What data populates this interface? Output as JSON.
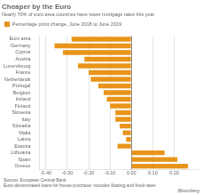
{
  "chart_data": {
    "type": "bar",
    "orientation": "horizontal",
    "title": "Cheaper by the Euro",
    "subtitle": "Nearly 70% of euro area countries have lower mortgage rates this year",
    "categories": [
      "Euro area",
      "Germany",
      "Cyprus",
      "Austria",
      "Luxembourg",
      "France",
      "Netherlands",
      "Portugal",
      "Belgium",
      "Ireland",
      "Finland",
      "Slovenia",
      "Italy",
      "Slovakia",
      "Malta",
      "Latvia",
      "Estonia",
      "Lithuania",
      "Spain",
      "Greece"
    ],
    "series": [
      {
        "name": "Percentage point change, June 2018 to June 2019",
        "color": "#E8941A",
        "values": [
          -0.28,
          -0.36,
          -0.32,
          -0.22,
          -0.25,
          -0.2,
          -0.19,
          -0.155,
          -0.13,
          -0.115,
          -0.1,
          -0.075,
          -0.075,
          -0.055,
          -0.04,
          -0.025,
          -0.065,
          0.155,
          0.215,
          0.265
        ]
      }
    ],
    "xlim": [
      -0.43,
      0.31
    ],
    "xticks": [
      {
        "value": -0.4,
        "label": "-0.40"
      },
      {
        "value": -0.3,
        "label": "-0.30"
      },
      {
        "value": -0.2,
        "label": "-0.20"
      },
      {
        "value": -0.1,
        "label": "-0.10"
      },
      {
        "value": 0.0,
        "label": "0.00"
      },
      {
        "value": 0.1,
        "label": "0.10"
      },
      {
        "value": 0.2,
        "label": "0.20"
      }
    ],
    "grid": true,
    "legend": "top",
    "annotations": [
      "Source: European Central Bank",
      "Euro-denominated loans for house purchase; includes floating and fixed rates",
      "Bloomberg"
    ]
  }
}
